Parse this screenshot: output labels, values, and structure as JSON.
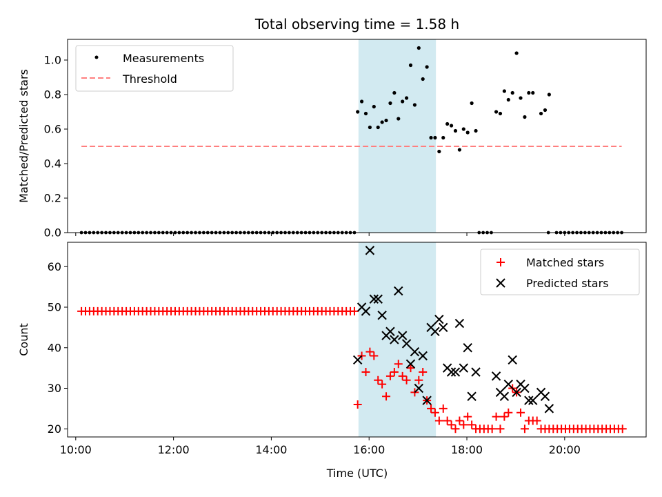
{
  "chart_data": {
    "title": "Total observing time = 1.58 h",
    "shaded_region": {
      "x_start": "15:47",
      "x_end": "17:22",
      "color": "#add8e6"
    },
    "x_axis": {
      "label": "Time (UTC)",
      "range": [
        "09:50",
        "21:40"
      ],
      "ticks": [
        "10:00",
        "12:00",
        "14:00",
        "16:00",
        "18:00",
        "20:00"
      ]
    },
    "top": {
      "type": "scatter",
      "ylabel": "Matched/Predicted stars",
      "ylim": [
        0,
        1.12
      ],
      "yticks": [
        "0.0",
        "0.2",
        "0.4",
        "0.6",
        "0.8",
        "1.0"
      ],
      "legend": {
        "position": "top-left",
        "entries": [
          "Measurements",
          "Threshold"
        ]
      },
      "threshold": {
        "value": 0.5,
        "from": "10:07",
        "to": "21:10",
        "color": "#ff7f7f"
      },
      "zero_spans": [
        {
          "from": "10:07",
          "to": "15:45",
          "step_min": 5
        },
        {
          "from": "18:15",
          "to": "18:30",
          "step_min": 5
        },
        {
          "from": "19:50",
          "to": "21:10",
          "step_min": 5
        }
      ],
      "zero_points": [
        "19:40"
      ],
      "measurements": [
        [
          "15:46",
          0.7
        ],
        [
          "15:51",
          0.76
        ],
        [
          "15:56",
          0.69
        ],
        [
          "16:01",
          0.61
        ],
        [
          "16:06",
          0.73
        ],
        [
          "16:11",
          0.61
        ],
        [
          "16:16",
          0.64
        ],
        [
          "16:21",
          0.65
        ],
        [
          "16:26",
          0.75
        ],
        [
          "16:31",
          0.81
        ],
        [
          "16:36",
          0.66
        ],
        [
          "16:41",
          0.76
        ],
        [
          "16:46",
          0.78
        ],
        [
          "16:51",
          0.97
        ],
        [
          "16:56",
          0.74
        ],
        [
          "17:01",
          1.07
        ],
        [
          "17:06",
          0.89
        ],
        [
          "17:11",
          0.96
        ],
        [
          "17:16",
          0.55
        ],
        [
          "17:21",
          0.55
        ],
        [
          "17:26",
          0.47
        ],
        [
          "17:31",
          0.55
        ],
        [
          "17:36",
          0.63
        ],
        [
          "17:41",
          0.62
        ],
        [
          "17:46",
          0.59
        ],
        [
          "17:51",
          0.48
        ],
        [
          "17:56",
          0.6
        ],
        [
          "18:01",
          0.58
        ],
        [
          "18:06",
          0.75
        ],
        [
          "18:11",
          0.59
        ],
        [
          "18:36",
          0.7
        ],
        [
          "18:41",
          0.69
        ],
        [
          "18:46",
          0.82
        ],
        [
          "18:51",
          0.77
        ],
        [
          "18:56",
          0.81
        ],
        [
          "19:01",
          1.04
        ],
        [
          "19:06",
          0.78
        ],
        [
          "19:11",
          0.67
        ],
        [
          "19:16",
          0.81
        ],
        [
          "19:21",
          0.81
        ],
        [
          "19:31",
          0.69
        ],
        [
          "19:36",
          0.71
        ],
        [
          "19:41",
          0.8
        ]
      ]
    },
    "bottom": {
      "type": "scatter",
      "ylabel": "Count",
      "ylim": [
        18,
        66
      ],
      "yticks": [
        "20",
        "30",
        "40",
        "50",
        "60"
      ],
      "legend": {
        "position": "top-right",
        "entries": [
          "Matched stars",
          "Predicted stars"
        ]
      },
      "matched_constant_spans": [
        {
          "from": "10:07",
          "to": "15:44",
          "step_min": 5,
          "value": 49
        },
        {
          "from": "19:41",
          "to": "21:11",
          "step_min": 5,
          "value": 20
        }
      ],
      "matched": [
        [
          "15:46",
          26
        ],
        [
          "15:51",
          38
        ],
        [
          "15:56",
          34
        ],
        [
          "16:01",
          39
        ],
        [
          "16:06",
          38
        ],
        [
          "16:11",
          32
        ],
        [
          "16:16",
          31
        ],
        [
          "16:21",
          28
        ],
        [
          "16:26",
          33
        ],
        [
          "16:31",
          34
        ],
        [
          "16:36",
          36
        ],
        [
          "16:41",
          33
        ],
        [
          "16:46",
          32
        ],
        [
          "16:51",
          35
        ],
        [
          "16:56",
          29
        ],
        [
          "17:01",
          32
        ],
        [
          "17:06",
          34
        ],
        [
          "17:11",
          27
        ],
        [
          "17:16",
          25
        ],
        [
          "17:21",
          24
        ],
        [
          "17:26",
          22
        ],
        [
          "17:31",
          25
        ],
        [
          "17:36",
          22
        ],
        [
          "17:41",
          21
        ],
        [
          "17:46",
          20
        ],
        [
          "17:51",
          22
        ],
        [
          "17:56",
          21
        ],
        [
          "18:01",
          23
        ],
        [
          "18:06",
          21
        ],
        [
          "18:11",
          20
        ],
        [
          "18:16",
          20
        ],
        [
          "18:21",
          20
        ],
        [
          "18:26",
          20
        ],
        [
          "18:31",
          20
        ],
        [
          "18:36",
          23
        ],
        [
          "18:41",
          20
        ],
        [
          "18:46",
          23
        ],
        [
          "18:51",
          24
        ],
        [
          "18:56",
          30
        ],
        [
          "19:01",
          29
        ],
        [
          "19:06",
          24
        ],
        [
          "19:11",
          20
        ],
        [
          "19:16",
          22
        ],
        [
          "19:21",
          22
        ],
        [
          "19:26",
          22
        ],
        [
          "19:31",
          20
        ],
        [
          "19:36",
          20
        ]
      ],
      "predicted": [
        [
          "15:46",
          37
        ],
        [
          "15:51",
          50
        ],
        [
          "15:56",
          49
        ],
        [
          "16:01",
          64
        ],
        [
          "16:06",
          52
        ],
        [
          "16:11",
          52
        ],
        [
          "16:16",
          48
        ],
        [
          "16:21",
          43
        ],
        [
          "16:26",
          44
        ],
        [
          "16:31",
          42
        ],
        [
          "16:36",
          54
        ],
        [
          "16:41",
          43
        ],
        [
          "16:46",
          41
        ],
        [
          "16:51",
          36
        ],
        [
          "16:56",
          39
        ],
        [
          "17:01",
          30
        ],
        [
          "17:06",
          38
        ],
        [
          "17:11",
          27
        ],
        [
          "17:16",
          45
        ],
        [
          "17:21",
          44
        ],
        [
          "17:26",
          47
        ],
        [
          "17:31",
          45
        ],
        [
          "17:36",
          35
        ],
        [
          "17:41",
          34
        ],
        [
          "17:46",
          34
        ],
        [
          "17:51",
          46
        ],
        [
          "17:56",
          35
        ],
        [
          "18:01",
          40
        ],
        [
          "18:06",
          28
        ],
        [
          "18:11",
          34
        ],
        [
          "18:36",
          33
        ],
        [
          "18:41",
          29
        ],
        [
          "18:46",
          28
        ],
        [
          "18:51",
          31
        ],
        [
          "18:56",
          37
        ],
        [
          "19:01",
          29
        ],
        [
          "19:06",
          31
        ],
        [
          "19:11",
          30
        ],
        [
          "19:16",
          27
        ],
        [
          "19:21",
          27
        ],
        [
          "19:31",
          29
        ],
        [
          "19:36",
          28
        ],
        [
          "19:41",
          25
        ]
      ]
    }
  }
}
